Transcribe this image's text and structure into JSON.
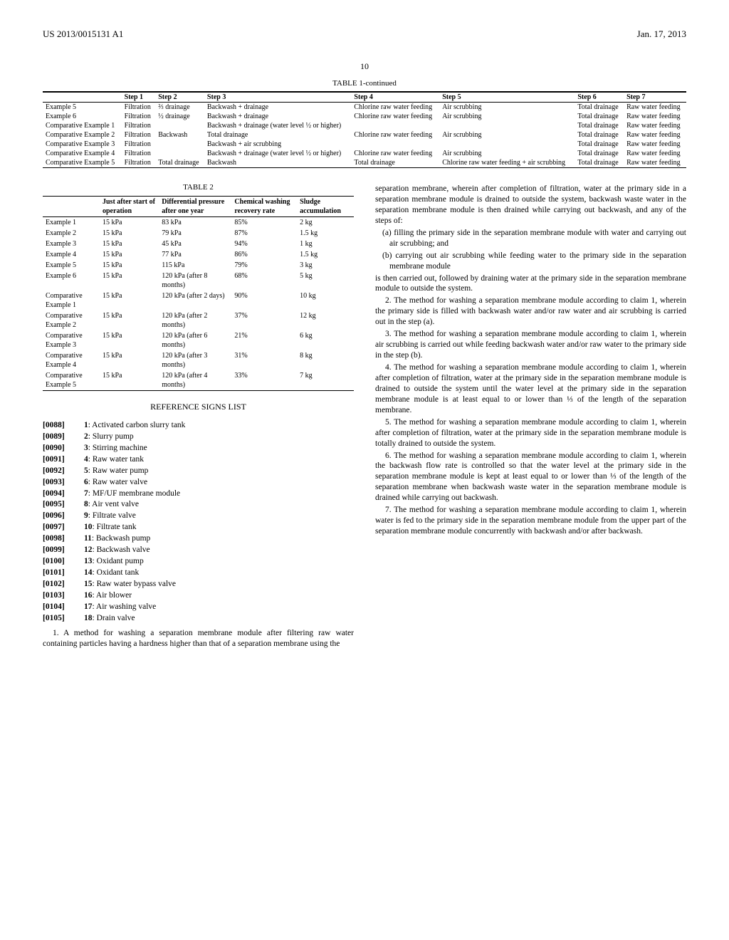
{
  "header": {
    "left": "US 2013/0015131 A1",
    "right": "Jan. 17, 2013"
  },
  "pagenum": "10",
  "table1": {
    "caption": "TABLE 1-continued",
    "headers": [
      "",
      "Step 1",
      "Step 2",
      "Step 3",
      "Step 4",
      "Step 5",
      "Step 6",
      "Step 7"
    ],
    "rows": [
      [
        "Example 5",
        "Filtration",
        "⅔ drainage",
        "Backwash + drainage",
        "Chlorine raw water feeding",
        "Air scrubbing",
        "Total drainage",
        "Raw water feeding"
      ],
      [
        "Example 6",
        "Filtration",
        "½ drainage",
        "Backwash + drainage",
        "Chlorine raw water feeding",
        "Air scrubbing",
        "Total drainage",
        "Raw water feeding"
      ],
      [
        "Comparative Example 1",
        "Filtration",
        "",
        "Backwash + drainage (water level ½ or higher)",
        "",
        "",
        "Total drainage",
        "Raw water feeding"
      ],
      [
        "Comparative Example 2",
        "Filtration",
        "Backwash",
        "Total drainage",
        "Chlorine raw water feeding",
        "Air scrubbing",
        "Total drainage",
        "Raw water feeding"
      ],
      [
        "Comparative Example 3",
        "Filtration",
        "",
        "Backwash + air scrubbing",
        "",
        "",
        "Total drainage",
        "Raw water feeding"
      ],
      [
        "Comparative Example 4",
        "Filtration",
        "",
        "Backwash + drainage (water level ½ or higher)",
        "Chlorine raw water feeding",
        "Air scrubbing",
        "Total drainage",
        "Raw water feeding"
      ],
      [
        "Comparative Example 5",
        "Filtration",
        "Total drainage",
        "Backwash",
        "Total drainage",
        "Chlorine raw water feeding + air scrubbing",
        "Total drainage",
        "Raw water feeding"
      ]
    ]
  },
  "table2": {
    "caption": "TABLE 2",
    "headers": [
      "",
      "Just after start of operation",
      "Differential pressure after one year",
      "Chemical washing recovery rate",
      "Sludge accumulation"
    ],
    "rows": [
      [
        "Example 1",
        "15 kPa",
        "83 kPa",
        "85%",
        "2 kg"
      ],
      [
        "Example 2",
        "15 kPa",
        "79 kPa",
        "87%",
        "1.5 kg"
      ],
      [
        "Example 3",
        "15 kPa",
        "45 kPa",
        "94%",
        "1 kg"
      ],
      [
        "Example 4",
        "15 kPa",
        "77 kPa",
        "86%",
        "1.5 kg"
      ],
      [
        "Example 5",
        "15 kPa",
        "115 kPa",
        "79%",
        "3 kg"
      ],
      [
        "Example 6",
        "15 kPa",
        "120 kPa (after 8 months)",
        "68%",
        "5 kg"
      ],
      [
        "Comparative Example 1",
        "15 kPa",
        "120 kPa (after 2 days)",
        "90%",
        "10 kg"
      ],
      [
        "Comparative Example 2",
        "15 kPa",
        "120 kPa (after 2 months)",
        "37%",
        "12 kg"
      ],
      [
        "Comparative Example 3",
        "15 kPa",
        "120 kPa (after 6 months)",
        "21%",
        "6 kg"
      ],
      [
        "Comparative Example 4",
        "15 kPa",
        "120 kPa (after 3 months)",
        "31%",
        "8 kg"
      ],
      [
        "Comparative Example 5",
        "15 kPa",
        "120 kPa (after 4 months)",
        "33%",
        "7 kg"
      ]
    ]
  },
  "refSigns": {
    "heading": "REFERENCE SIGNS LIST",
    "items": [
      {
        "num": "[0088]",
        "body": "1: Activated carbon slurry tank"
      },
      {
        "num": "[0089]",
        "body": "2: Slurry pump"
      },
      {
        "num": "[0090]",
        "body": "3: Stirring machine"
      },
      {
        "num": "[0091]",
        "body": "4: Raw water tank"
      },
      {
        "num": "[0092]",
        "body": "5: Raw water pump"
      },
      {
        "num": "[0093]",
        "body": "6: Raw water valve"
      },
      {
        "num": "[0094]",
        "body": "7: MF/UF membrane module"
      },
      {
        "num": "[0095]",
        "body": "8: Air vent valve"
      },
      {
        "num": "[0096]",
        "body": "9: Filtrate valve"
      },
      {
        "num": "[0097]",
        "body": "10: Filtrate tank"
      },
      {
        "num": "[0098]",
        "body": "11: Backwash pump"
      },
      {
        "num": "[0099]",
        "body": "12: Backwash valve"
      },
      {
        "num": "[0100]",
        "body": "13: Oxidant pump"
      },
      {
        "num": "[0101]",
        "body": "14: Oxidant tank"
      },
      {
        "num": "[0102]",
        "body": "15: Raw water bypass valve"
      },
      {
        "num": "[0103]",
        "body": "16: Air blower"
      },
      {
        "num": "[0104]",
        "body": "17: Air washing valve"
      },
      {
        "num": "[0105]",
        "body": "18: Drain valve"
      }
    ]
  },
  "claims": {
    "c1_lead": "1. A method for washing a separation membrane module after filtering raw water containing particles having a hardness higher than that of a separation membrane using the",
    "c1_cont1": "separation membrane, wherein after completion of filtration, water at the primary side in a separation membrane module is drained to outside the system, backwash waste water in the separation membrane module is then drained while carrying out backwash, and any of the steps of:",
    "c1_a": "(a) filling the primary side in the separation membrane module with water and carrying out air scrubbing; and",
    "c1_b": "(b) carrying out air scrubbing while feeding water to the primary side in the separation membrane module",
    "c1_cont2": "is then carried out, followed by draining water at the primary side in the separation membrane module to outside the system.",
    "c2": "2. The method for washing a separation membrane module according to claim 1, wherein the primary side is filled with backwash water and/or raw water and air scrubbing is carried out in the step (a).",
    "c3": "3. The method for washing a separation membrane module according to claim 1, wherein air scrubbing is carried out while feeding backwash water and/or raw water to the primary side in the step (b).",
    "c4": "4. The method for washing a separation membrane module according to claim 1, wherein after completion of filtration, water at the primary side in the separation membrane module is drained to outside the system until the water level at the primary side in the separation membrane module is at least equal to or lower than ⅓ of the length of the separation membrane.",
    "c5": "5. The method for washing a separation membrane module according to claim 1, wherein after completion of filtration, water at the primary side in the separation membrane module is totally drained to outside the system.",
    "c6": "6. The method for washing a separation membrane module according to claim 1, wherein the backwash flow rate is controlled so that the water level at the primary side in the separation membrane module is kept at least equal to or lower than ⅓ of the length of the separation membrane when backwash waste water in the separation membrane module is drained while carrying out backwash.",
    "c7": "7. The method for washing a separation membrane module according to claim 1, wherein water is fed to the primary side in the separation membrane module from the upper part of the separation membrane module concurrently with backwash and/or after backwash."
  }
}
